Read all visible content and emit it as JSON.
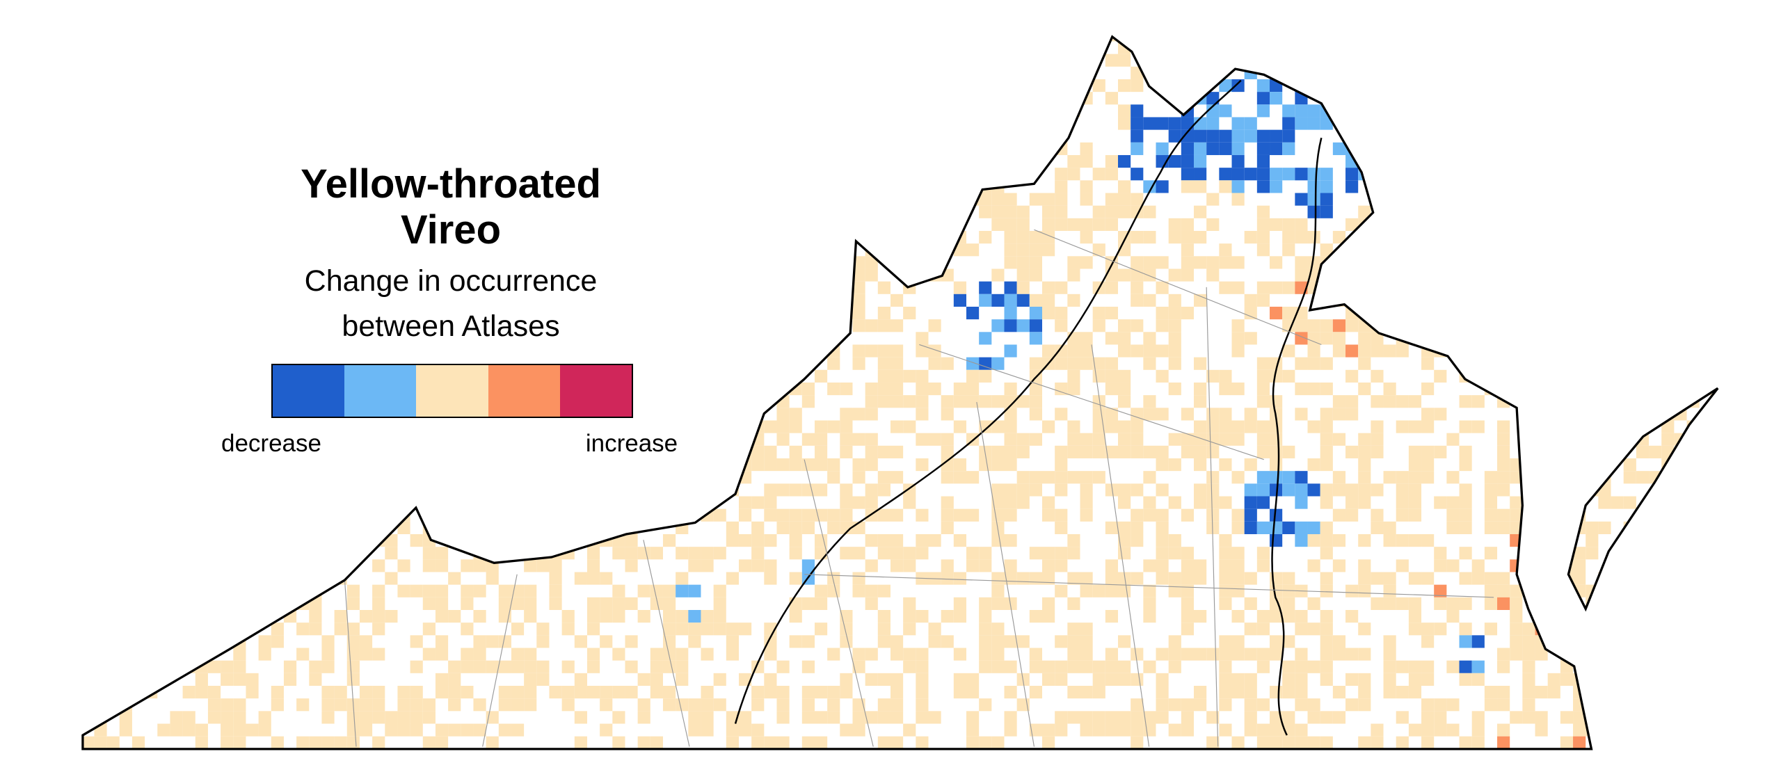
{
  "title": "Yellow-throated Vireo",
  "subtitle": "Change in occurrence between Atlases",
  "legend": {
    "colors": [
      "#1f5fcc",
      "#6cb8f5",
      "#fde4b8",
      "#fb9261",
      "#d0265a"
    ],
    "low_label": "decrease",
    "high_label": "increase"
  }
}
